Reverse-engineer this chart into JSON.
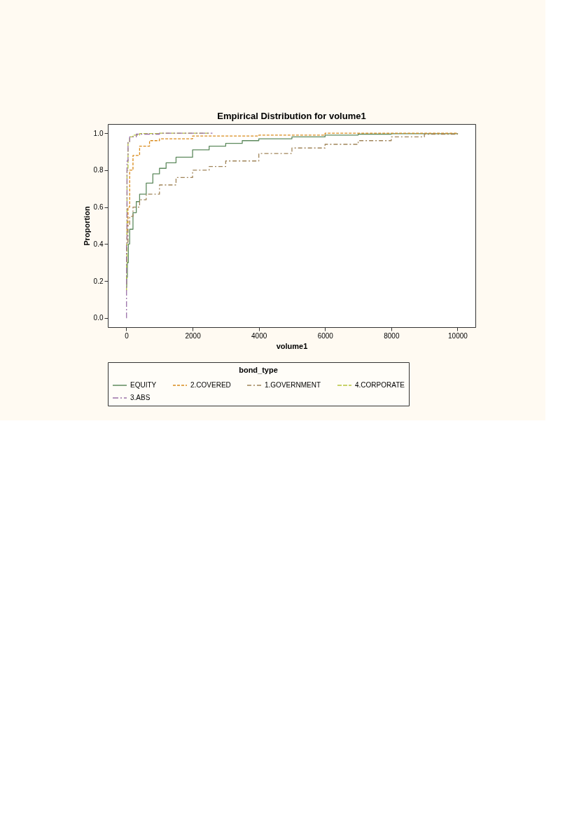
{
  "chart_data": {
    "type": "step",
    "title": "Empirical Distribution for volume1",
    "xlabel": "volume1",
    "ylabel": "Proportion",
    "legend_title": "bond_type",
    "legend": "bottom",
    "grid": false,
    "xlim": [
      -560,
      10540
    ],
    "ylim": [
      -0.05,
      1.05
    ],
    "xticks": [
      0,
      2000,
      4000,
      6000,
      8000,
      10000
    ],
    "yticks": [
      {
        "value": 0,
        "label": "0.0"
      },
      0.2,
      0.4,
      0.6,
      0.8,
      {
        "value": 1,
        "label": "1.0"
      }
    ],
    "series": [
      {
        "name": "EQUITY",
        "color": "#5e8a5e",
        "line_style": "solid",
        "x": [
          0,
          10,
          30,
          60,
          100,
          200,
          300,
          400,
          600,
          800,
          1000,
          1200,
          1500,
          2000,
          2500,
          3000,
          3500,
          4000,
          5000,
          6000,
          7000,
          8000,
          10000
        ],
        "values": [
          0.17,
          0.22,
          0.3,
          0.4,
          0.48,
          0.57,
          0.63,
          0.67,
          0.73,
          0.78,
          0.81,
          0.84,
          0.87,
          0.91,
          0.93,
          0.945,
          0.96,
          0.97,
          0.98,
          0.99,
          0.995,
          0.997,
          1.0
        ]
      },
      {
        "name": "2.COVERED",
        "color": "#d98a1a",
        "line_style": "dashed",
        "x": [
          0,
          20,
          50,
          100,
          200,
          400,
          700,
          1000,
          2000,
          4000,
          6000,
          10000
        ],
        "values": [
          0.43,
          0.5,
          0.6,
          0.8,
          0.88,
          0.93,
          0.96,
          0.97,
          0.985,
          0.99,
          1.0,
          1.0
        ]
      },
      {
        "name": "1.GOVERNMENT",
        "color": "#a08458",
        "line_style": "dashdot",
        "x": [
          0,
          10,
          50,
          100,
          200,
          400,
          600,
          1000,
          1500,
          2000,
          2500,
          3000,
          4000,
          5000,
          6000,
          7000,
          8000,
          9000,
          10000
        ],
        "values": [
          0.31,
          0.4,
          0.5,
          0.55,
          0.6,
          0.64,
          0.67,
          0.72,
          0.76,
          0.8,
          0.82,
          0.85,
          0.89,
          0.92,
          0.94,
          0.96,
          0.98,
          0.995,
          1.0
        ]
      },
      {
        "name": "4.CORPORATE",
        "color": "#b5c43a",
        "line_style": "longdash",
        "x": [
          0,
          5,
          20,
          50,
          100,
          200,
          400,
          1000,
          2500
        ],
        "values": [
          0.15,
          0.3,
          0.8,
          0.95,
          0.98,
          0.99,
          0.998,
          1.0,
          1.0
        ]
      },
      {
        "name": "3.ABS",
        "color": "#9a70a8",
        "line_style": "longdashdot",
        "x": [
          0,
          5,
          20,
          50,
          100,
          300,
          1000,
          2600
        ],
        "values": [
          0.0,
          0.4,
          0.85,
          0.95,
          0.98,
          0.995,
          1.0,
          1.0
        ]
      }
    ]
  }
}
